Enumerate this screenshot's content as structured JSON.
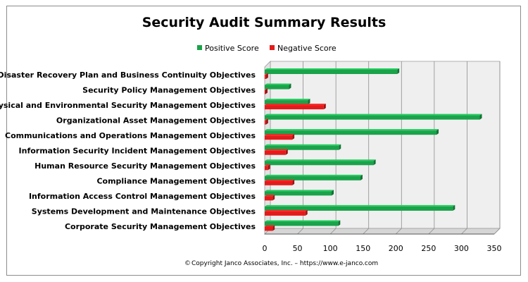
{
  "chart_data": {
    "type": "bar",
    "orientation": "horizontal",
    "title": "Security Audit Summary Results",
    "categories": [
      "Disaster Recovery Plan and Business Continuity Objectives",
      "Security Policy Management Objectives",
      "Physical and Environmental Security Management Objectives",
      "Organizational Asset Management Objectives",
      "Communications and Operations Management Objectives",
      "Information Security Incident Management Objectives",
      "Human Resource Security Management Objectives",
      "Compliance Management Objectives",
      "Information Access Control Management Objectives",
      "Systems Development and Maintenance Objectives",
      "Corporate Security Management Objectives"
    ],
    "series": [
      {
        "name": "Positive Score",
        "color": "#1aa34a",
        "values": [
          202,
          37,
          66,
          328,
          262,
          113,
          166,
          146,
          102,
          287,
          112
        ]
      },
      {
        "name": "Negative Score",
        "color": "#e41b1b",
        "values": [
          2,
          1,
          90,
          2,
          42,
          32,
          5,
          42,
          12,
          62,
          12
        ]
      }
    ],
    "xlim": [
      0,
      350
    ],
    "xticks": [
      "0",
      "50",
      "100",
      "150",
      "200",
      "250",
      "300",
      "350"
    ],
    "grid": true,
    "legend_position": "top"
  },
  "footer": {
    "copyright": "Copyright Janco Associates, Inc. – https://www.e-janco.com",
    "copyright_symbol": "©"
  }
}
